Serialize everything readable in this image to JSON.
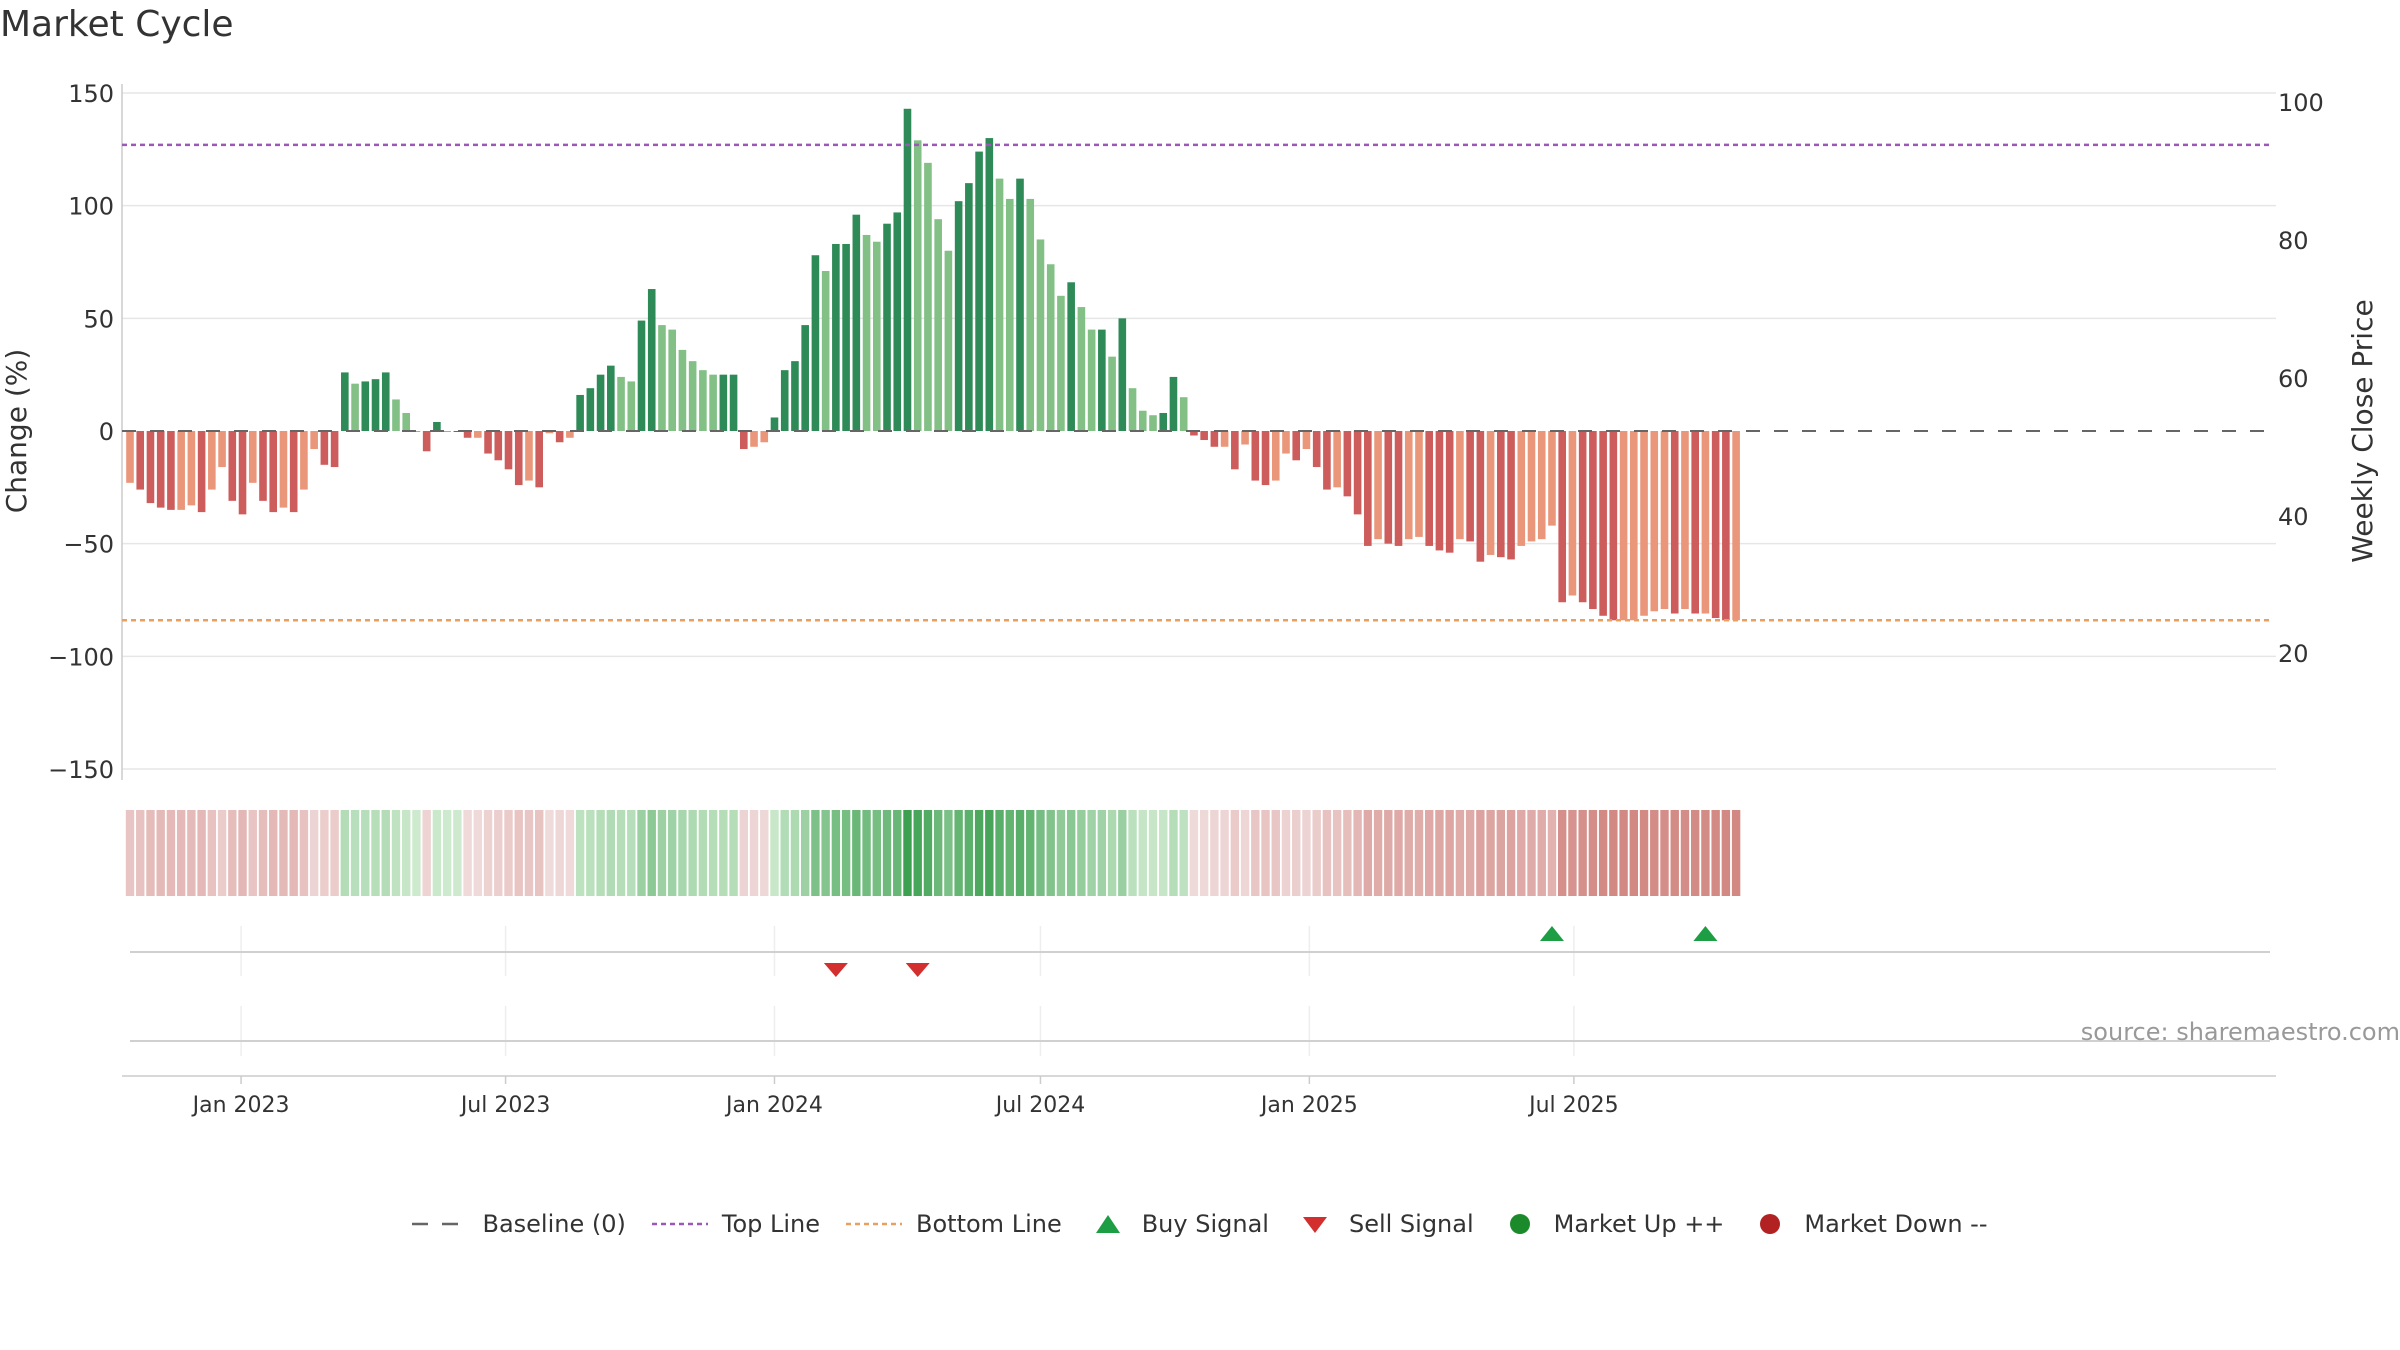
{
  "title": "Market Cycle",
  "source": "source: sharemaestro.com",
  "legend": {
    "baseline": "Baseline (0)",
    "top_line": "Top Line",
    "bottom_line": "Bottom Line",
    "buy_signal": "Buy Signal",
    "sell_signal": "Sell Signal",
    "market_up": "Market Up ++",
    "market_down": "Market Down --"
  },
  "colors": {
    "up_strong": "#2e8b57",
    "up_light": "#82c086",
    "down_strong": "#cd5c5c",
    "down_light": "#e9967a",
    "top_line": "#9b59b6",
    "bottom_line": "#e8a060",
    "baseline": "#666666",
    "buy": "#1e9e44",
    "sell": "#d32f2f",
    "market_up": "#1a8a2a",
    "market_down": "#b22222"
  },
  "chart_data": {
    "type": "bar",
    "title": "Market Cycle",
    "ylabel": "Change (%)",
    "y2label": "Weekly Close Price",
    "ylim": [
      -150,
      150
    ],
    "y2lim": [
      0,
      100
    ],
    "yticks": [
      "150",
      "100",
      "50",
      "0",
      "−50",
      "−100",
      "−150"
    ],
    "y2ticks": [
      "100",
      "80",
      "60",
      "40",
      "20"
    ],
    "xticks": [
      "Jan 2023",
      "Jul 2023",
      "Jan 2024",
      "Jul 2024",
      "Jan 2025",
      "Jul 2025"
    ],
    "x_start": "2022-10-17",
    "x_interval": "weekly",
    "top_line": 127,
    "bottom_line": -84,
    "baseline": 0,
    "values": [
      -23,
      -26,
      -32,
      -34,
      -35,
      -35,
      -33,
      -36,
      -26,
      -16,
      -31,
      -37,
      -23,
      -31,
      -36,
      -34,
      -36,
      -26,
      -8,
      -15,
      -16,
      26,
      21,
      22,
      23,
      26,
      14,
      8,
      0,
      -9,
      4,
      0,
      0,
      -3,
      -3,
      -10,
      -13,
      -17,
      -24,
      -22,
      -25,
      -1,
      -5,
      -3,
      16,
      19,
      25,
      29,
      24,
      22,
      49,
      63,
      47,
      45,
      36,
      31,
      27,
      25,
      25,
      25,
      -8,
      -7,
      -5,
      6,
      27,
      31,
      47,
      78,
      71,
      83,
      83,
      96,
      87,
      84,
      92,
      97,
      143,
      129,
      119,
      94,
      80,
      102,
      110,
      124,
      130,
      112,
      103,
      112,
      103,
      85,
      74,
      60,
      66,
      55,
      45,
      45,
      33,
      50,
      19,
      9,
      7,
      8,
      24,
      15,
      -2,
      -4,
      -7,
      -7,
      -17,
      -6,
      -22,
      -24,
      -22,
      -10,
      -13,
      -8,
      -16,
      -26,
      -25,
      -29,
      -37,
      -51,
      -48,
      -50,
      -51,
      -48,
      -47,
      -51,
      -53,
      -54,
      -48,
      -49,
      -58,
      -55,
      -56,
      -57,
      -51,
      -49,
      -48,
      -42,
      -76,
      -73,
      -76,
      -79,
      -82,
      -84,
      -84,
      -84,
      -82,
      -80,
      -79,
      -81,
      -79,
      -81,
      -81,
      -83,
      -84,
      -84
    ],
    "signals": {
      "buy": [
        "2025-06-16",
        "2025-09-29"
      ],
      "sell": [
        "2024-02-12",
        "2024-04-08"
      ]
    }
  }
}
